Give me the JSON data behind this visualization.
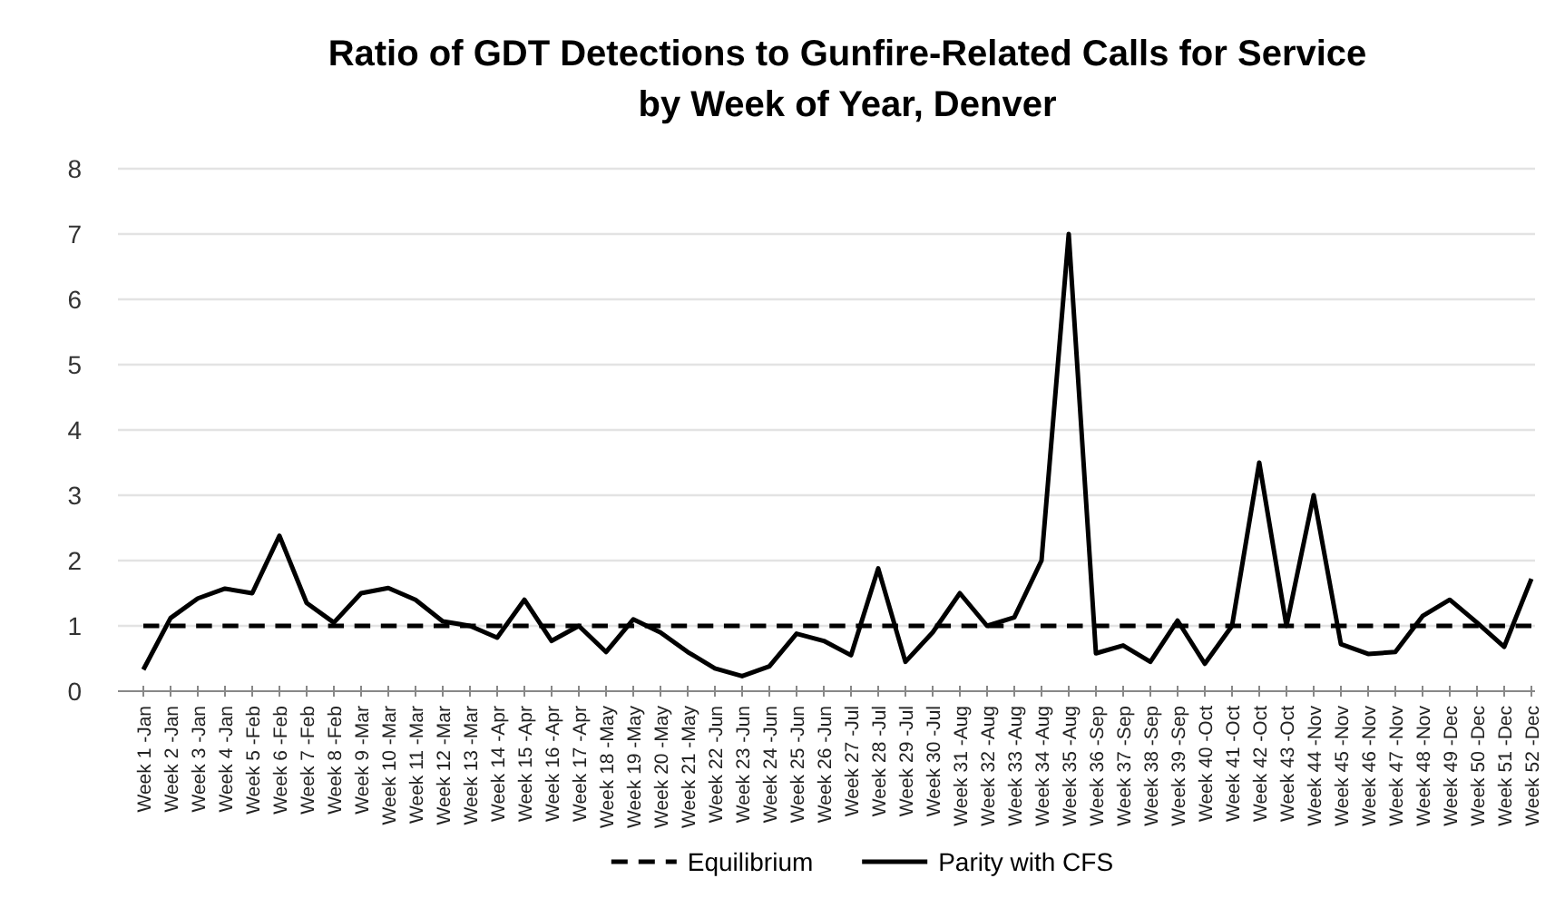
{
  "chart_data": {
    "type": "line",
    "title": "Ratio of GDT Detections to Gunfire-Related Calls for Service\nby Week of Year, Denver",
    "categories": [
      "Week 1 -Jan",
      "Week 2 -Jan",
      "Week 3 -Jan",
      "Week 4 -Jan",
      "Week 5 -Feb",
      "Week 6 -Feb",
      "Week 7 -Feb",
      "Week 8 -Feb",
      "Week 9 -Mar",
      "Week 10 -Mar",
      "Week 11 -Mar",
      "Week 12 -Mar",
      "Week 13 -Mar",
      "Week 14 -Apr",
      "Week 15 -Apr",
      "Week 16 -Apr",
      "Week 17 -Apr",
      "Week 18 -May",
      "Week 19 -May",
      "Week 20 -May",
      "Week 21 -May",
      "Week 22 -Jun",
      "Week 23 -Jun",
      "Week 24 -Jun",
      "Week 25 -Jun",
      "Week 26 -Jun",
      "Week 27 -Jul",
      "Week 28 -Jul",
      "Week 29 -Jul",
      "Week 30 -Jul",
      "Week 31 -Aug",
      "Week 32 -Aug",
      "Week 33 -Aug",
      "Week 34 -Aug",
      "Week 35 -Aug",
      "Week 36 -Sep",
      "Week 37 -Sep",
      "Week 38 -Sep",
      "Week 39 -Sep",
      "Week 40 -Oct",
      "Week 41 -Oct",
      "Week 42 -Oct",
      "Week 43 -Oct",
      "Week 44 -Nov",
      "Week 45 -Nov",
      "Week 46 -Nov",
      "Week 47 -Nov",
      "Week 48 -Nov",
      "Week 49 -Dec",
      "Week 50 -Dec",
      "Week 51 -Dec",
      "Week 52 -Dec"
    ],
    "series": [
      {
        "name": "Equilibrium",
        "color": "#000000",
        "line_style": "dashed",
        "values": [
          1,
          1,
          1,
          1,
          1,
          1,
          1,
          1,
          1,
          1,
          1,
          1,
          1,
          1,
          1,
          1,
          1,
          1,
          1,
          1,
          1,
          1,
          1,
          1,
          1,
          1,
          1,
          1,
          1,
          1,
          1,
          1,
          1,
          1,
          1,
          1,
          1,
          1,
          1,
          1,
          1,
          1,
          1,
          1,
          1,
          1,
          1,
          1,
          1,
          1,
          1,
          1
        ]
      },
      {
        "name": "Parity with CFS",
        "color": "#000000",
        "line_style": "solid",
        "values": [
          0.33,
          1.12,
          1.42,
          1.57,
          1.5,
          2.38,
          1.35,
          1.05,
          1.5,
          1.58,
          1.4,
          1.07,
          1.0,
          0.82,
          1.4,
          0.77,
          1.0,
          0.6,
          1.1,
          0.9,
          0.6,
          0.35,
          0.23,
          0.38,
          0.88,
          0.77,
          0.55,
          1.88,
          0.45,
          0.9,
          1.5,
          1.0,
          1.13,
          2.0,
          7.0,
          0.58,
          0.7,
          0.45,
          1.08,
          0.42,
          1.0,
          3.5,
          1.0,
          3.0,
          0.72,
          0.57,
          0.6,
          1.15,
          1.4,
          1.05,
          0.68,
          1.72
        ]
      }
    ],
    "ylim": [
      0,
      8
    ],
    "yticks": [
      0,
      1,
      2,
      3,
      4,
      5,
      6,
      7,
      8
    ],
    "grid": "y",
    "legend": "bottom",
    "marker": "none"
  }
}
